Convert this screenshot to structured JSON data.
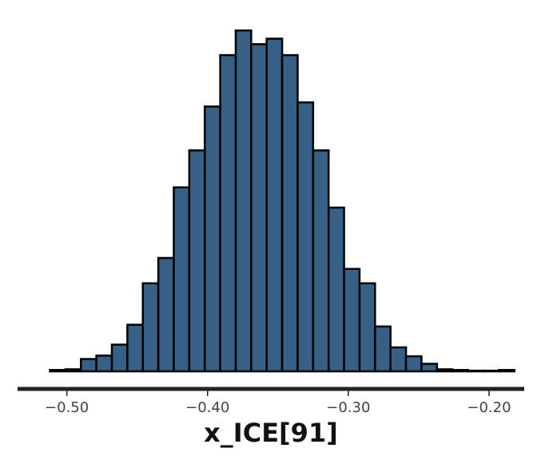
{
  "chart_data": {
    "type": "bar",
    "title": "",
    "xlabel": "x_ICE[91]",
    "ylabel": "",
    "xlim": [
      -0.535,
      -0.175
    ],
    "ylim": [
      0,
      1.0
    ],
    "grid": false,
    "bin_start": -0.512,
    "bin_width": 0.011,
    "counts": [
      0.004,
      0.006,
      0.036,
      0.046,
      0.078,
      0.136,
      0.257,
      0.331,
      0.537,
      0.645,
      0.773,
      0.923,
      0.995,
      0.955,
      0.971,
      0.923,
      0.785,
      0.645,
      0.478,
      0.299,
      0.257,
      0.131,
      0.07,
      0.044,
      0.022,
      0.006,
      0.004,
      0.002,
      0.002,
      0.004
    ],
    "fill_color": "#376086",
    "edge_color": "#000000",
    "ticks": [
      {
        "value": -0.5,
        "label": "−0.50"
      },
      {
        "value": -0.4,
        "label": "−0.40"
      },
      {
        "value": -0.3,
        "label": "−0.30"
      },
      {
        "value": -0.2,
        "label": "−0.20"
      }
    ]
  }
}
